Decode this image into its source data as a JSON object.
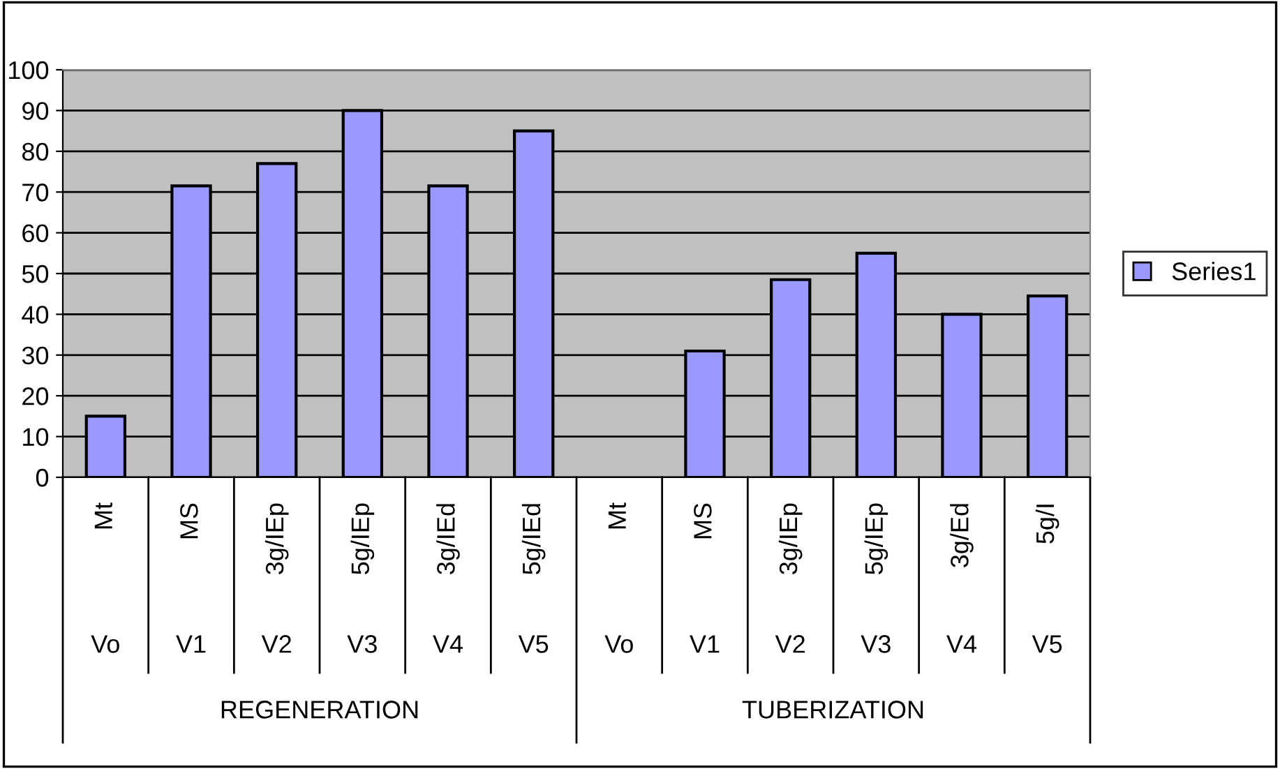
{
  "chart_data": {
    "type": "bar",
    "categories": [
      "Mt",
      "MS",
      "3g/IEp",
      "5g/IEp",
      "3g/IEd",
      "5g/IEd",
      "Mt",
      "MS",
      "3g/IEp",
      "5g/IEp",
      "3g/Ed",
      "5g/I"
    ],
    "series": [
      {
        "name": "Series1",
        "color": "#9999ff",
        "values": [
          15,
          71.5,
          77,
          90,
          71.5,
          85,
          null,
          31,
          48.5,
          55,
          40,
          44.5
        ]
      }
    ],
    "annotations": [
      "Vo",
      "V1",
      "V2",
      "V3",
      "V4",
      "V5",
      "Vo",
      "V1",
      "V2",
      "V3",
      "V4",
      "V5",
      "REGENERATION",
      "TUBERIZATION"
    ],
    "ylim": [
      0,
      100
    ],
    "yticks": [
      0,
      10,
      20,
      30,
      40,
      50,
      60,
      70,
      80,
      90,
      100
    ],
    "grid": "y",
    "legend": "right"
  }
}
